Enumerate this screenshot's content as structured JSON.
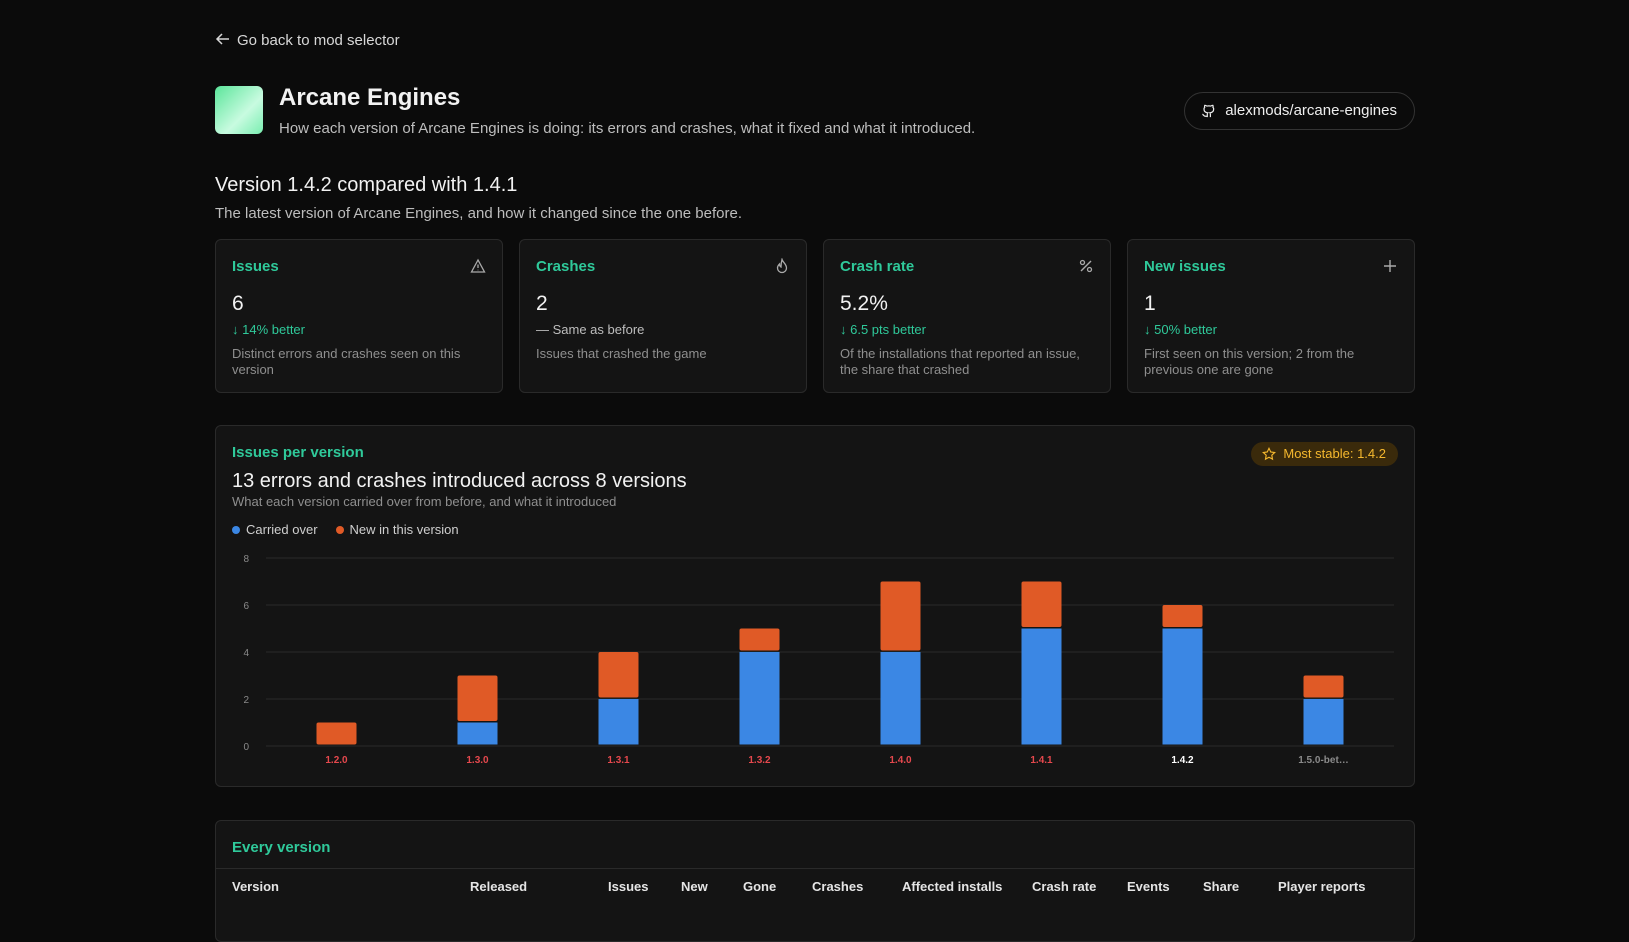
{
  "back_link": "Go back to mod selector",
  "header": {
    "title": "Arcane Engines",
    "subtitle": "How each version of Arcane Engines is doing: its errors and crashes, what it fixed and what it introduced.",
    "repo": "alexmods/arcane-engines"
  },
  "comparison": {
    "title": "Version 1.4.2 compared with 1.4.1",
    "subtitle": "The latest version of Arcane Engines, and how it changed since the one before."
  },
  "cards": [
    {
      "label": "Issues",
      "value": "6",
      "delta": "↓ 14% better",
      "note": "Distinct errors and crashes seen on this version"
    },
    {
      "label": "Crashes",
      "value": "2",
      "delta": "— Same as before",
      "note": "Issues that crashed the game"
    },
    {
      "label": "Crash rate",
      "value": "5.2%",
      "delta": "↓ 6.5 pts better",
      "note": "Of the installations that reported an issue, the share that crashed"
    },
    {
      "label": "New issues",
      "value": "1",
      "delta": "↓ 50% better",
      "note": "First seen on this version; 2 from the previous one are gone"
    }
  ],
  "chart_panel": {
    "eyebrow": "Issues per version",
    "badge": "Most stable: 1.4.2"
  },
  "chart_data": {
    "type": "stacked-bar",
    "title": "13 errors and crashes introduced across 8 versions",
    "subtitle": "What each version carried over from before, and what it introduced",
    "categories": [
      "1.2.0",
      "1.3.0",
      "1.3.1",
      "1.3.2",
      "1.4.0",
      "1.4.1",
      "1.4.2",
      "1.5.0-bet…"
    ],
    "category_label_colors": [
      "#e5484d",
      "#e5484d",
      "#e5484d",
      "#e5484d",
      "#e5484d",
      "#e5484d",
      "#ffffff",
      "#8a8a8a"
    ],
    "series": [
      {
        "name": "Carried over",
        "color": "#3b87e4",
        "values": [
          0,
          1,
          2,
          4,
          4,
          5,
          5,
          2
        ]
      },
      {
        "name": "New in this version",
        "color": "#e05a26",
        "values": [
          1,
          2,
          2,
          1,
          3,
          2,
          1,
          1
        ]
      }
    ],
    "ylim": [
      0,
      8
    ],
    "yticks": [
      0,
      2,
      4,
      6,
      8
    ],
    "grid": true
  },
  "table": {
    "title": "Every version",
    "columns": [
      "Version",
      "Released",
      "Issues",
      "New",
      "Gone",
      "Crashes",
      "Affected installs",
      "Crash rate",
      "Events",
      "Share",
      "Player reports"
    ]
  }
}
